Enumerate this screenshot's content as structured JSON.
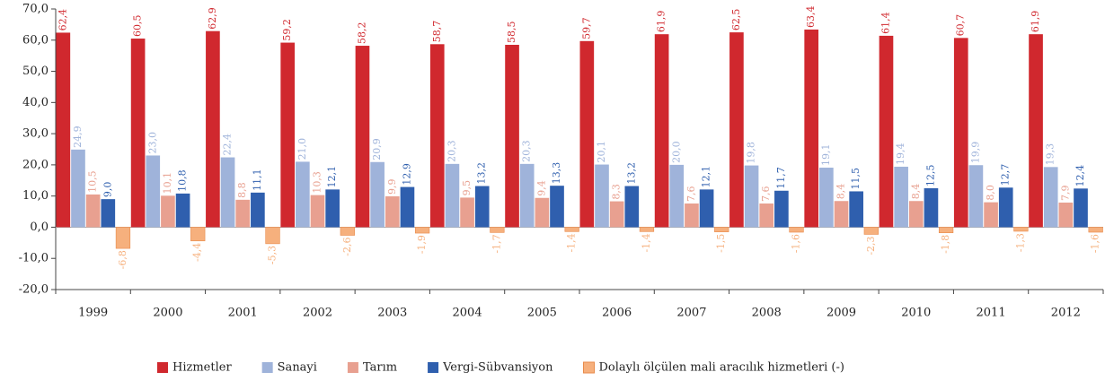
{
  "chart_data": {
    "type": "bar",
    "categories": [
      "1999",
      "2000",
      "2001",
      "2002",
      "2003",
      "2004",
      "2005",
      "2006",
      "2007",
      "2008",
      "2009",
      "2010",
      "2011",
      "2012"
    ],
    "series": [
      {
        "name": "Hizmetler",
        "color": "#d0282e",
        "values": [
          62.4,
          60.5,
          62.9,
          59.2,
          58.2,
          58.7,
          58.5,
          59.7,
          61.9,
          62.5,
          63.4,
          61.4,
          60.7,
          61.9
        ],
        "value_labels": [
          "62,4",
          "60,5",
          "62,9",
          "59,2",
          "58,2",
          "58,7",
          "58,5",
          "59,7",
          "61,9",
          "62,5",
          "63,4",
          "61,4",
          "60,7",
          "61,9"
        ]
      },
      {
        "name": "Sanayi",
        "color": "#9fb3da",
        "values": [
          24.9,
          23.0,
          22.4,
          21.0,
          20.9,
          20.3,
          20.3,
          20.1,
          20.0,
          19.8,
          19.1,
          19.4,
          19.9,
          19.3
        ],
        "value_labels": [
          "24,9",
          "23,0",
          "22,4",
          "21,0",
          "20,9",
          "20,3",
          "20,3",
          "20,1",
          "20,0",
          "19,8",
          "19,1",
          "19,4",
          "19,9",
          "19,3"
        ]
      },
      {
        "name": "Tarım",
        "color": "#e8a090",
        "values": [
          10.5,
          10.1,
          8.8,
          10.3,
          9.9,
          9.5,
          9.4,
          8.3,
          7.6,
          7.6,
          8.4,
          8.4,
          8.0,
          7.9
        ],
        "value_labels": [
          "10,5",
          "10,1",
          "8,8",
          "10,3",
          "9,9",
          "9,5",
          "9,4",
          "8,3",
          "7,6",
          "7,6",
          "8,4",
          "8,4",
          "8,0",
          "7,9"
        ]
      },
      {
        "name": "Vergi-Sübvansiyon",
        "color": "#2f5fae",
        "values": [
          9.0,
          10.8,
          11.1,
          12.1,
          12.9,
          13.2,
          13.3,
          13.2,
          12.1,
          11.7,
          11.5,
          12.5,
          12.7,
          12.4
        ],
        "value_labels": [
          "9,0",
          "10,8",
          "11,1",
          "12,1",
          "12,9",
          "13,2",
          "13,3",
          "13,2",
          "12,1",
          "11,7",
          "11,5",
          "12,5",
          "12,7",
          "12,4"
        ]
      },
      {
        "name": "Dolaylı ölçülen mali aracılık hizmetleri (-)",
        "color": "#f6b07d",
        "values": [
          -6.8,
          -4.4,
          -5.3,
          -2.6,
          -1.9,
          -1.7,
          -1.4,
          -1.4,
          -1.5,
          -1.6,
          -2.3,
          -1.8,
          -1.3,
          -1.6
        ],
        "value_labels": [
          "-6,8",
          "-4,4",
          "-5,3",
          "-2,6",
          "-1,9",
          "-1,7",
          "-1,4",
          "-1,4",
          "-1,5",
          "-1,6",
          "-2,3",
          "-1,8",
          "-1,3",
          "-1,6"
        ]
      }
    ],
    "ylim": [
      -20,
      70
    ],
    "yticks": [
      {
        "value": -20,
        "label": "-20,0"
      },
      {
        "value": -10,
        "label": "-10,0"
      },
      {
        "value": 0,
        "label": "0,0"
      },
      {
        "value": 10,
        "label": "10,0"
      },
      {
        "value": 20,
        "label": "20,0"
      },
      {
        "value": 30,
        "label": "30,0"
      },
      {
        "value": 40,
        "label": "40,0"
      },
      {
        "value": 50,
        "label": "50,0"
      },
      {
        "value": 60,
        "label": "60,0"
      },
      {
        "value": 70,
        "label": "70,0"
      }
    ],
    "legend": "bottom"
  }
}
